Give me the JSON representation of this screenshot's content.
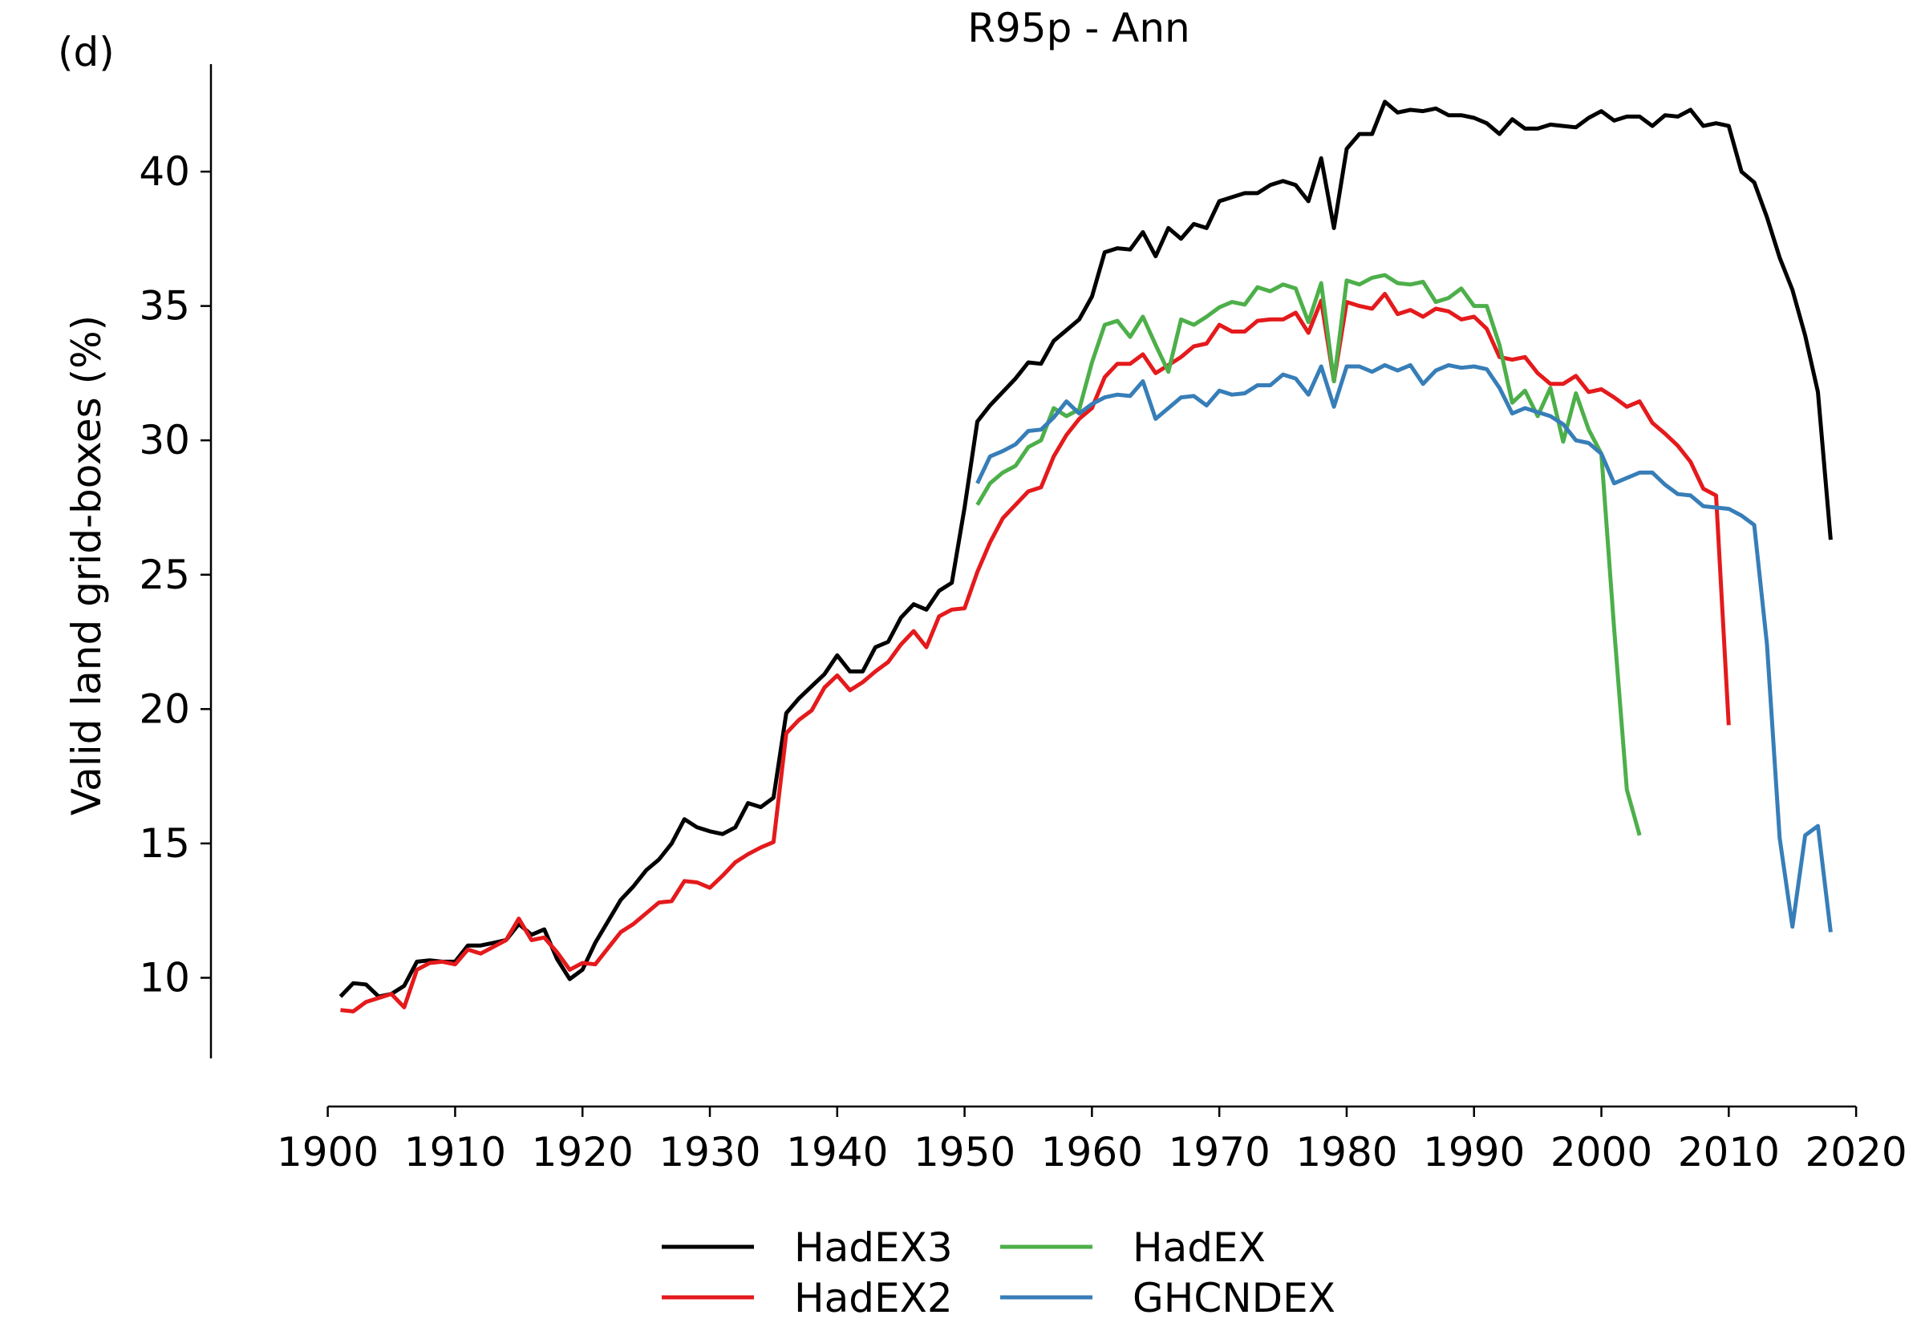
{
  "panel_label": "(d)",
  "chart_data": {
    "type": "line",
    "title": "R95p - Ann",
    "xlabel": "",
    "ylabel": "Valid land grid-boxes (%)",
    "xlim": [
      1897,
      2021
    ],
    "ylim": [
      7,
      44
    ],
    "x_ticks": [
      1900,
      1910,
      1920,
      1930,
      1940,
      1950,
      1960,
      1970,
      1980,
      1990,
      2000,
      2010,
      2020
    ],
    "y_ticks": [
      10,
      15,
      20,
      25,
      30,
      35,
      40
    ],
    "grid": false,
    "legend_position": "bottom-center",
    "series": [
      {
        "name": "HadEX3",
        "color": "#000000",
        "x": [
          1901,
          1902,
          1903,
          1904,
          1905,
          1906,
          1907,
          1908,
          1909,
          1910,
          1911,
          1912,
          1913,
          1914,
          1915,
          1916,
          1917,
          1918,
          1919,
          1920,
          1921,
          1922,
          1923,
          1924,
          1925,
          1926,
          1927,
          1928,
          1929,
          1930,
          1931,
          1932,
          1933,
          1934,
          1935,
          1936,
          1937,
          1938,
          1939,
          1940,
          1941,
          1942,
          1943,
          1944,
          1945,
          1946,
          1947,
          1948,
          1949,
          1950,
          1951,
          1952,
          1953,
          1954,
          1955,
          1956,
          1957,
          1958,
          1959,
          1960,
          1961,
          1962,
          1963,
          1964,
          1965,
          1966,
          1967,
          1968,
          1969,
          1970,
          1971,
          1972,
          1973,
          1974,
          1975,
          1976,
          1977,
          1978,
          1979,
          1980,
          1981,
          1982,
          1983,
          1984,
          1985,
          1986,
          1987,
          1988,
          1989,
          1990,
          1991,
          1992,
          1993,
          1994,
          1995,
          1996,
          1997,
          1998,
          1999,
          2000,
          2001,
          2002,
          2003,
          2004,
          2005,
          2006,
          2007,
          2008,
          2009,
          2010,
          2011,
          2012,
          2013,
          2014,
          2015,
          2016,
          2017,
          2018
        ],
        "y": [
          9.3,
          9.8,
          9.75,
          9.3,
          9.4,
          9.7,
          10.6,
          10.65,
          10.6,
          10.6,
          11.2,
          11.2,
          11.3,
          11.4,
          12.0,
          11.6,
          11.8,
          10.7,
          9.95,
          10.3,
          11.3,
          12.1,
          12.9,
          13.4,
          14.0,
          14.4,
          15.0,
          15.9,
          15.6,
          15.45,
          15.35,
          15.6,
          16.5,
          16.35,
          16.7,
          19.85,
          20.4,
          20.85,
          21.3,
          22.0,
          21.4,
          21.4,
          22.3,
          22.5,
          23.4,
          23.9,
          23.7,
          24.4,
          24.7,
          27.5,
          30.7,
          31.3,
          31.8,
          32.3,
          32.9,
          32.85,
          33.7,
          34.1,
          34.5,
          35.35,
          37.0,
          37.15,
          37.1,
          37.75,
          36.85,
          37.9,
          37.5,
          38.05,
          37.9,
          38.9,
          39.05,
          39.2,
          39.2,
          39.5,
          39.65,
          39.5,
          38.9,
          40.5,
          37.9,
          40.85,
          41.4,
          41.4,
          42.6,
          42.2,
          42.3,
          42.25,
          42.35,
          42.1,
          42.1,
          42.0,
          41.8,
          41.4,
          41.95,
          41.6,
          41.6,
          41.75,
          41.7,
          41.65,
          42.0,
          42.25,
          41.9,
          42.05,
          42.05,
          41.7,
          42.1,
          42.05,
          42.3,
          41.7,
          41.8,
          41.7,
          40.0,
          39.6,
          38.3,
          36.8,
          35.6,
          33.9,
          31.8,
          26.3
        ]
      },
      {
        "name": "HadEX2",
        "color": "#e41a1c",
        "x": [
          1901,
          1902,
          1903,
          1904,
          1905,
          1906,
          1907,
          1908,
          1909,
          1910,
          1911,
          1912,
          1913,
          1914,
          1915,
          1916,
          1917,
          1918,
          1919,
          1920,
          1921,
          1922,
          1923,
          1924,
          1925,
          1926,
          1927,
          1928,
          1929,
          1930,
          1931,
          1932,
          1933,
          1934,
          1935,
          1936,
          1937,
          1938,
          1939,
          1940,
          1941,
          1942,
          1943,
          1944,
          1945,
          1946,
          1947,
          1948,
          1949,
          1950,
          1951,
          1952,
          1953,
          1954,
          1955,
          1956,
          1957,
          1958,
          1959,
          1960,
          1961,
          1962,
          1963,
          1964,
          1965,
          1966,
          1967,
          1968,
          1969,
          1970,
          1971,
          1972,
          1973,
          1974,
          1975,
          1976,
          1977,
          1978,
          1979,
          1980,
          1981,
          1982,
          1983,
          1984,
          1985,
          1986,
          1987,
          1988,
          1989,
          1990,
          1991,
          1992,
          1993,
          1994,
          1995,
          1996,
          1997,
          1998,
          1999,
          2000,
          2001,
          2002,
          2003,
          2004,
          2005,
          2006,
          2007,
          2008,
          2009,
          2010
        ],
        "y": [
          8.8,
          8.75,
          9.1,
          9.25,
          9.4,
          8.9,
          10.3,
          10.55,
          10.6,
          10.5,
          11.05,
          10.9,
          11.15,
          11.4,
          12.2,
          11.4,
          11.5,
          10.95,
          10.3,
          10.55,
          10.5,
          11.1,
          11.7,
          12.0,
          12.4,
          12.8,
          12.85,
          13.6,
          13.55,
          13.35,
          13.8,
          14.3,
          14.6,
          14.85,
          15.05,
          19.1,
          19.6,
          19.95,
          20.8,
          21.25,
          20.7,
          21.0,
          21.4,
          21.75,
          22.4,
          22.9,
          22.3,
          23.45,
          23.7,
          23.75,
          25.1,
          26.2,
          27.1,
          27.6,
          28.1,
          28.25,
          29.4,
          30.2,
          30.8,
          31.2,
          32.35,
          32.85,
          32.85,
          33.2,
          32.5,
          32.8,
          33.1,
          33.5,
          33.6,
          34.3,
          34.05,
          34.05,
          34.45,
          34.5,
          34.5,
          34.75,
          34.0,
          35.2,
          32.2,
          35.15,
          35.0,
          34.9,
          35.45,
          34.7,
          34.85,
          34.6,
          34.9,
          34.8,
          34.5,
          34.6,
          34.15,
          33.1,
          33.0,
          33.1,
          32.5,
          32.1,
          32.1,
          32.4,
          31.8,
          31.9,
          31.6,
          31.25,
          31.45,
          30.65,
          30.25,
          29.8,
          29.2,
          28.2,
          27.95,
          19.4
        ]
      },
      {
        "name": "HadEX",
        "color": "#4daf4a",
        "x": [
          1951,
          1952,
          1953,
          1954,
          1955,
          1956,
          1957,
          1958,
          1959,
          1960,
          1961,
          1962,
          1963,
          1964,
          1965,
          1966,
          1967,
          1968,
          1969,
          1970,
          1971,
          1972,
          1973,
          1974,
          1975,
          1976,
          1977,
          1978,
          1979,
          1980,
          1981,
          1982,
          1983,
          1984,
          1985,
          1986,
          1987,
          1988,
          1989,
          1990,
          1991,
          1992,
          1993,
          1994,
          1995,
          1996,
          1997,
          1998,
          1999,
          2000,
          2001,
          2002,
          2003
        ],
        "y": [
          27.6,
          28.4,
          28.8,
          29.05,
          29.75,
          30.0,
          31.2,
          30.9,
          31.15,
          32.9,
          34.3,
          34.45,
          33.85,
          34.6,
          33.55,
          32.55,
          34.5,
          34.3,
          34.6,
          34.95,
          35.15,
          35.05,
          35.7,
          35.55,
          35.8,
          35.65,
          34.4,
          35.85,
          32.2,
          35.95,
          35.8,
          36.05,
          36.15,
          35.85,
          35.8,
          35.9,
          35.15,
          35.3,
          35.65,
          35.0,
          35.0,
          33.55,
          31.4,
          31.85,
          30.9,
          31.95,
          29.95,
          31.75,
          30.4,
          29.5,
          23.0,
          17.0,
          15.3
        ]
      },
      {
        "name": "GHCNDEX",
        "color": "#377eb8",
        "x": [
          1951,
          1952,
          1953,
          1954,
          1955,
          1956,
          1957,
          1958,
          1959,
          1960,
          1961,
          1962,
          1963,
          1964,
          1965,
          1966,
          1967,
          1968,
          1969,
          1970,
          1971,
          1972,
          1973,
          1974,
          1975,
          1976,
          1977,
          1978,
          1979,
          1980,
          1981,
          1982,
          1983,
          1984,
          1985,
          1986,
          1987,
          1988,
          1989,
          1990,
          1991,
          1992,
          1993,
          1994,
          1995,
          1996,
          1997,
          1998,
          1999,
          2000,
          2001,
          2002,
          2003,
          2004,
          2005,
          2006,
          2007,
          2008,
          2009,
          2010,
          2011,
          2012,
          2013,
          2014,
          2015,
          2016,
          2017,
          2018
        ],
        "y": [
          28.4,
          29.4,
          29.6,
          29.85,
          30.35,
          30.4,
          30.85,
          31.45,
          31.0,
          31.35,
          31.6,
          31.7,
          31.65,
          32.2,
          30.8,
          31.2,
          31.6,
          31.65,
          31.3,
          31.85,
          31.7,
          31.75,
          32.05,
          32.05,
          32.45,
          32.3,
          31.7,
          32.75,
          31.25,
          32.75,
          32.75,
          32.55,
          32.8,
          32.6,
          32.8,
          32.1,
          32.6,
          32.8,
          32.7,
          32.75,
          32.65,
          31.95,
          31.0,
          31.2,
          31.05,
          30.9,
          30.6,
          30.0,
          29.9,
          29.5,
          28.4,
          28.6,
          28.8,
          28.8,
          28.35,
          28.0,
          27.95,
          27.55,
          27.5,
          27.45,
          27.2,
          26.85,
          22.4,
          15.2,
          11.9,
          15.3,
          15.65,
          11.7
        ]
      }
    ]
  }
}
